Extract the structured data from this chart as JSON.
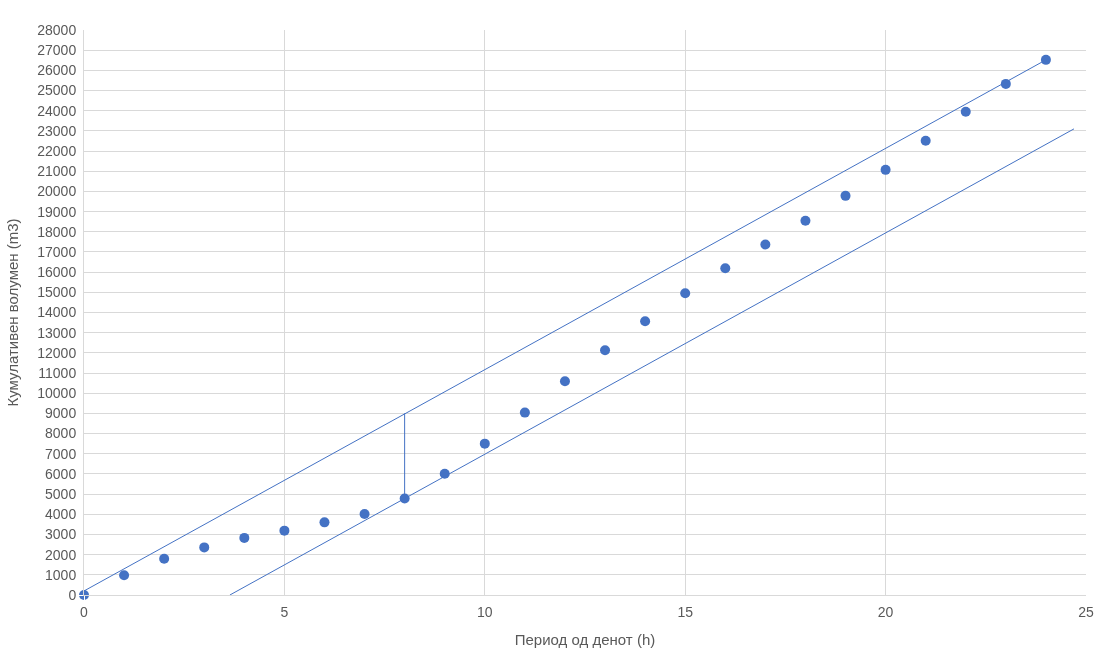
{
  "chart_data": {
    "type": "scatter",
    "xlabel": "Период од денот (h)",
    "ylabel": "Кумулативен волумен (m3)",
    "x": [
      0,
      1,
      2,
      3,
      4,
      5,
      6,
      7,
      8,
      9,
      10,
      11,
      12,
      13,
      14,
      15,
      16,
      17,
      18,
      19,
      20,
      21,
      22,
      23,
      24
    ],
    "series": [
      {
        "color": "#4472c4",
        "marker": "circle",
        "values": [
          0,
          980,
          1800,
          2360,
          2830,
          3190,
          3600,
          4010,
          4780,
          6010,
          7500,
          9040,
          10590,
          12130,
          13570,
          14950,
          16190,
          17370,
          18550,
          19780,
          21070,
          22510,
          23950,
          25330,
          26520
        ]
      },
      {
        "type": "line",
        "color": "#4472c4",
        "marker": "none",
        "x": [
          0,
          24
        ],
        "values": [
          200,
          26520
        ]
      },
      {
        "type": "line",
        "color": "#4472c4",
        "marker": "none",
        "x": [
          3.64,
          24.7
        ],
        "values": [
          0,
          23100
        ]
      },
      {
        "type": "line",
        "color": "#4472c4",
        "marker": "none",
        "x": [
          8,
          8
        ],
        "values": [
          4780,
          9000
        ]
      }
    ],
    "xlim": [
      0,
      25
    ],
    "xticks": [
      0,
      5,
      10,
      15,
      20,
      25
    ],
    "ylim": [
      0,
      28000
    ],
    "yticks": [
      0,
      1000,
      2000,
      3000,
      4000,
      5000,
      6000,
      7000,
      8000,
      9000,
      10000,
      11000,
      12000,
      13000,
      14000,
      15000,
      16000,
      17000,
      18000,
      19000,
      20000,
      21000,
      22000,
      23000,
      24000,
      25000,
      26000,
      27000,
      28000
    ],
    "grid": true
  }
}
